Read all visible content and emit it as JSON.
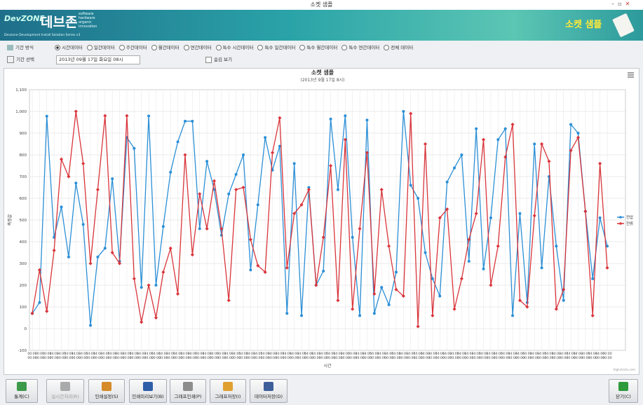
{
  "window": {
    "title": "소켓 샘플"
  },
  "banner": {
    "logo_brand": "DevZONE",
    "logo_korean": "데브존",
    "logo_tagline": [
      "software",
      "hardware",
      "organic",
      "innovation"
    ],
    "logo_series": "Devzone Development Install Solution Series v3",
    "app_title": "소켓 샘플"
  },
  "options": {
    "period_type_label": "기간 방식",
    "period_types": [
      "시간데이터",
      "일간데이터",
      "주간데이터",
      "월간데이터",
      "연간데이터",
      "특수 시간데이터",
      "특수 일간데이터",
      "특수 월간데이터",
      "특수 연간데이터",
      "전체 데이터"
    ],
    "selected": "시간데이터",
    "period_select_label": "기간 선택",
    "date": "2013년 09월 17일 화요일 08시",
    "checkbox_label": "숨김 보기"
  },
  "chart_data": {
    "type": "line",
    "title": "소켓 샘플",
    "subtitle": "(2013년 9월 17일 8시)",
    "y_label": "측정값",
    "x_label": "시간",
    "credit": "Highcharts.com",
    "ylim": [
      -100,
      1100
    ],
    "yticks": [
      -100,
      0,
      100,
      200,
      300,
      400,
      500,
      600,
      700,
      800,
      900,
      {
        "value": 1000,
        "label": "1,000"
      },
      {
        "value": 1100,
        "label": "1,100"
      }
    ],
    "grid": true,
    "legend": "right",
    "categories": [
      [
        "00:00",
        "00:00"
      ],
      [
        "00:00",
        "00:00"
      ],
      [
        "00:00",
        "00:00"
      ],
      [
        "14:00",
        "00:00"
      ],
      [
        "34:00",
        "00:00"
      ],
      [
        "54:00",
        "00:00"
      ],
      [
        "14:00",
        "00:00"
      ],
      [
        "34:00",
        "00:00"
      ],
      [
        "54:00",
        "00:00"
      ],
      [
        "14:00",
        "00:00"
      ],
      [
        "34:00",
        "00:00"
      ],
      [
        "54:00",
        "00:00"
      ],
      [
        "14:00",
        "00:00"
      ],
      [
        "34:00",
        "00:00"
      ],
      [
        "54:00",
        "00:00"
      ],
      [
        "14:00",
        "00:00"
      ],
      [
        "34:00",
        "00:00"
      ],
      [
        "54:00",
        "00:00"
      ],
      [
        "14:00",
        "00:00"
      ],
      [
        "34:00",
        "00:00"
      ],
      [
        "54:00",
        "00:00"
      ],
      [
        "14:00",
        "00:00"
      ],
      [
        "34:00",
        "00:00"
      ],
      [
        "54:00",
        "00:00"
      ],
      [
        "14:00",
        "00:00"
      ],
      [
        "34:00",
        "00:00"
      ],
      [
        "54:00",
        "00:00"
      ],
      [
        "14:00",
        "00:00"
      ],
      [
        "34:00",
        "00:00"
      ],
      [
        "54:00",
        "00:00"
      ],
      [
        "14:00",
        "00:00"
      ],
      [
        "34:00",
        "00:00"
      ],
      [
        "54:00",
        "00:00"
      ],
      [
        "14:00",
        "00:00"
      ],
      [
        "34:00",
        "00:00"
      ],
      [
        "54:00",
        "00:00"
      ],
      [
        "14:00",
        "00:00"
      ],
      [
        "34:00",
        "00:00"
      ],
      [
        "54:00",
        "00:00"
      ],
      [
        "14:00",
        "00:00"
      ],
      [
        "34:00",
        "00:00"
      ],
      [
        "54:00",
        "00:00"
      ],
      [
        "14:00",
        "00:00"
      ],
      [
        "34:00",
        "00:00"
      ],
      [
        "54:00",
        "00:00"
      ],
      [
        "14:00",
        "00:00"
      ],
      [
        "34:00",
        "00:00"
      ],
      [
        "54:00",
        "00:00"
      ],
      [
        "14:00",
        "00:00"
      ],
      [
        "34:00",
        "00:00"
      ],
      [
        "54:00",
        "00:00"
      ],
      [
        "14:00",
        "00:00"
      ],
      [
        "34:00",
        "00:00"
      ],
      [
        "54:00",
        "00:00"
      ],
      [
        "14:00",
        "00:00"
      ],
      [
        "34:00",
        "00:00"
      ],
      [
        "54:00",
        "00:00"
      ],
      [
        "14:00",
        "00:00"
      ],
      [
        "34:00",
        "00:00"
      ],
      [
        "54:00",
        "00:00"
      ],
      [
        "14:00",
        "00:00"
      ],
      [
        "34:00",
        "00:00"
      ],
      [
        "54:00",
        "00:00"
      ],
      [
        "14:00",
        "00:00"
      ],
      [
        "34:00",
        "00:00"
      ],
      [
        "54:00",
        "00:00"
      ],
      [
        "14:00",
        "00:00"
      ],
      [
        "34:00",
        "00:00"
      ],
      [
        "54:00",
        "00:00"
      ],
      [
        "14:00",
        "00:00"
      ],
      [
        "34:00",
        "00:00"
      ],
      [
        "54:00",
        "00:00"
      ],
      [
        "14:00",
        "00:00"
      ],
      [
        "34:00",
        "00:00"
      ],
      [
        "54:00",
        "00:00"
      ],
      [
        "14:00",
        "00:00"
      ],
      [
        "34:00",
        "00:00"
      ],
      [
        "54:00",
        "00:00"
      ],
      [
        "14:00",
        "00:00"
      ],
      [
        "00:00",
        "00:00"
      ]
    ],
    "series": [
      {
        "name": "전압",
        "color": "#2b8fd6",
        "values": [
          70,
          120,
          978,
          420,
          560,
          330,
          670,
          480,
          15,
          330,
          370,
          690,
          310,
          880,
          830,
          190,
          979,
          200,
          470,
          720,
          860,
          955,
          955,
          460,
          770,
          640,
          430,
          620,
          710,
          800,
          270,
          570,
          880,
          730,
          840,
          70,
          760,
          60,
          650,
          200,
          265,
          965,
          640,
          980,
          420,
          60,
          960,
          70,
          190,
          110,
          260,
          1000,
          660,
          600,
          350,
          230,
          150,
          675,
          740,
          800,
          310,
          920,
          275,
          510,
          870,
          920,
          60,
          530,
          120,
          850,
          280,
          700,
          380,
          130,
          940,
          900,
          540,
          230,
          510,
          380
        ]
      },
      {
        "name": "전류",
        "color": "#d9343a",
        "values": [
          70,
          270,
          80,
          360,
          780,
          700,
          1000,
          760,
          300,
          640,
          980,
          350,
          300,
          980,
          230,
          30,
          200,
          50,
          260,
          370,
          160,
          800,
          340,
          620,
          460,
          680,
          460,
          130,
          640,
          650,
          410,
          290,
          260,
          810,
          970,
          280,
          530,
          570,
          640,
          200,
          420,
          750,
          130,
          870,
          90,
          460,
          810,
          160,
          640,
          380,
          180,
          150,
          990,
          10,
          850,
          60,
          510,
          550,
          90,
          230,
          410,
          530,
          870,
          200,
          380,
          790,
          940,
          130,
          100,
          520,
          850,
          770,
          90,
          180,
          820,
          880,
          540,
          60,
          760,
          280
        ]
      }
    ]
  },
  "buttons": [
    "통계(C)",
    "실시간처리(R)",
    "인쇄설정(S)",
    "인쇄미리보기(B)",
    "그래프인쇄(P)",
    "그래프저장(I)",
    "데이터저장(D)",
    "닫기(C)"
  ]
}
